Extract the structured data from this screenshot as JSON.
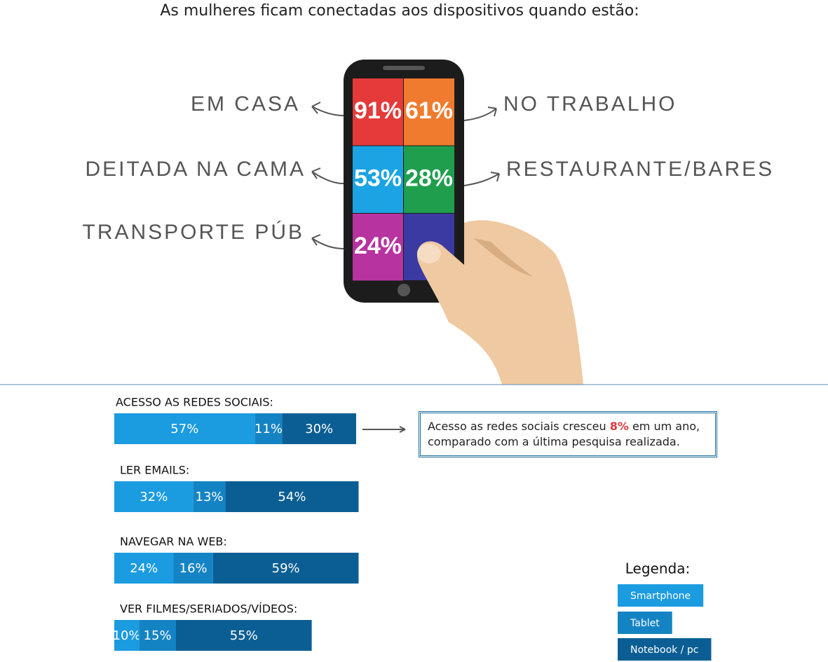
{
  "chart_data": [
    {
      "type": "tiles",
      "title": "As mulheres ficam conectadas aos dispositivos quando estão:",
      "categories": [
        "EM CASA",
        "NO TRABALHO",
        "DEITADA NA CAMA",
        "RESTAURANTE/BARES",
        "TRANSPORTE PÚB"
      ],
      "values": [
        91,
        61,
        53,
        28,
        24
      ],
      "value_labels": [
        "91%",
        "61%",
        "53%",
        "28%",
        "24%"
      ],
      "colors": [
        "#e53a3a",
        "#f07b2e",
        "#1ba3e4",
        "#1f9e4d",
        "#b7339f"
      ]
    },
    {
      "type": "stacked-bar",
      "categories": [
        "ACESSO AS REDES SOCIAIS:",
        "LER EMAILS:",
        "NAVEGAR NA WEB:",
        "VER FILMES/SERIADOS/VÍDEOS:"
      ],
      "xlim": [
        0,
        100
      ],
      "series": [
        {
          "name": "Smartphone",
          "color": "#1b9be0",
          "values": [
            57,
            32,
            24,
            10
          ],
          "value_labels": [
            "57%",
            "32%",
            "24%",
            "10%"
          ]
        },
        {
          "name": "Tablet",
          "color": "#1483c4",
          "values": [
            11,
            13,
            16,
            15
          ],
          "value_labels": [
            "11%",
            "13%",
            "16%",
            "15%"
          ]
        },
        {
          "name": "Notebook / pc",
          "color": "#0b5e94",
          "values": [
            30,
            54,
            59,
            55
          ],
          "value_labels": [
            "30%",
            "54%",
            "59%",
            "55%"
          ]
        }
      ],
      "legend_title": "Legenda:",
      "annotation": [
        "Acesso as redes sociais cresceu",
        "8%",
        "em um ano, comparado com a última pesquisa realizada."
      ]
    }
  ]
}
